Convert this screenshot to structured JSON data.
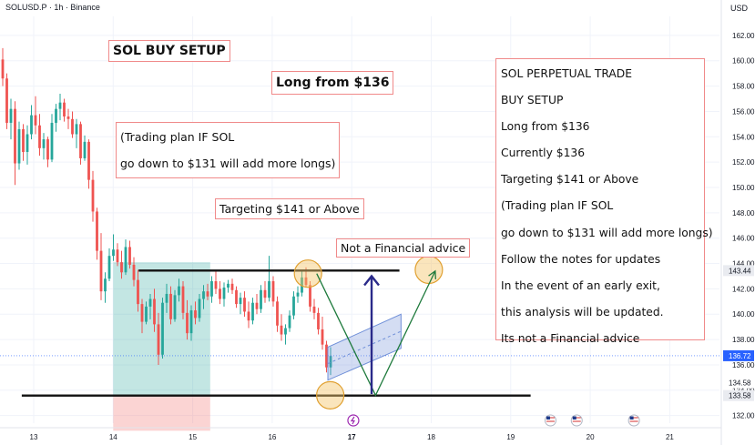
{
  "header": {
    "symbol": "SOLUSD.P · 1h · Binance",
    "currency": "USD"
  },
  "annotations": {
    "title": "SOL BUY SETUP",
    "entry": "Long from $136",
    "plan_line1": "(Trading plan IF SOL",
    "plan_line2": "go down to $131 will add more longs)",
    "target": "Targeting $141 or Above",
    "disclaimer": "Not a Financial advice"
  },
  "summary": {
    "lines": [
      "SOL PERPETUAL TRADE",
      "BUY SETUP",
      "Long from $136",
      "Currently $136",
      "Targeting $141 or Above",
      "(Trading plan IF SOL",
      "go down to $131 will add more longs)",
      "Follow the notes for updates",
      "In the event of an early exit,",
      "this analysis will be updated.",
      "Its not a Financial advice"
    ]
  },
  "colors": {
    "up": "#26a69a",
    "down": "#ef5350",
    "note_border": "#f08a8a",
    "arrow_navy": "#2a2a8a",
    "arrow_green": "#1e7a3c",
    "channel": "#6f8fd8",
    "circle_fill": "#f5c66a",
    "circle_stroke": "#e0a030",
    "price_tag": "#2962ff",
    "line_tag": "#131722",
    "event_icon": "#9c27b0"
  },
  "chart_data": {
    "type": "candlestick",
    "interval": "1h",
    "ylim": [
      131.4,
      163.5
    ],
    "y_ticks": [
      132,
      134,
      136,
      138,
      140,
      142,
      144,
      146,
      148,
      150,
      152,
      154,
      156,
      158,
      160,
      162
    ],
    "y_tick_labels": [
      "132.00",
      "134.00",
      "136.00",
      "138.00",
      "140.00",
      "142.00",
      "144.00",
      "146.00",
      "148.00",
      "150.00",
      "152.00",
      "154.00",
      "156.00",
      "158.00",
      "160.00",
      "162.00"
    ],
    "x_days": [
      13,
      14,
      15,
      16,
      17,
      18,
      19,
      20,
      21
    ],
    "x_tick_labels": [
      "13",
      "14",
      "15",
      "16",
      "17",
      "18",
      "19",
      "20",
      "21"
    ],
    "x_range": [
      12.55,
      21.55
    ],
    "price_labels": [
      {
        "value": 143.44,
        "text": "143.44",
        "kind": "line"
      },
      {
        "value": 136.72,
        "text": "136.72",
        "kind": "last"
      },
      {
        "value": 134.58,
        "text": "134.58",
        "kind": "minor"
      },
      {
        "value": 133.58,
        "text": "133.58",
        "kind": "line"
      }
    ],
    "levels": {
      "resistance": {
        "value": 143.44,
        "x_start": 14.32,
        "x_end": 17.6
      },
      "support": {
        "value": 133.58,
        "x_start": 12.85,
        "x_end": 19.25
      }
    },
    "long_position": {
      "x_start": 14.0,
      "x_end": 15.22,
      "entry": 133.58,
      "target": 144.1,
      "stop": 130.8
    },
    "path": [
      {
        "x": 16.56,
        "y": 143.2
      },
      {
        "x": 17.3,
        "y": 133.6
      },
      {
        "x": 18.05,
        "y": 143.4
      }
    ],
    "arrow_up": {
      "x": 17.25,
      "from": 133.7,
      "to": 143.0
    },
    "channel": {
      "x1": 16.7,
      "x2": 17.62,
      "bottom_start": 134.8,
      "bottom_end": 137.3,
      "top_start": 137.4,
      "top_end": 140.0
    },
    "circles": [
      {
        "x": 16.45,
        "y": 143.2
      },
      {
        "x": 16.73,
        "y": 133.6
      },
      {
        "x": 17.97,
        "y": 143.5
      }
    ],
    "events": [
      17.02
    ],
    "flags": [
      19.5,
      19.83,
      20.55
    ],
    "candles": [
      [
        160.1,
        161.0,
        158.0,
        158.6
      ],
      [
        158.6,
        159.0,
        154.6,
        155.1
      ],
      [
        155.1,
        157.0,
        153.8,
        156.2
      ],
      [
        156.2,
        156.8,
        150.2,
        151.9
      ],
      [
        151.9,
        155.2,
        151.4,
        154.6
      ],
      [
        154.6,
        155.0,
        152.1,
        152.8
      ],
      [
        152.8,
        154.9,
        151.8,
        154.2
      ],
      [
        154.2,
        156.5,
        153.8,
        155.7
      ],
      [
        155.7,
        157.2,
        154.2,
        154.9
      ],
      [
        154.9,
        155.8,
        152.5,
        153.1
      ],
      [
        153.1,
        154.3,
        152.2,
        153.8
      ],
      [
        153.8,
        154.0,
        151.6,
        152.2
      ],
      [
        152.2,
        155.8,
        152.0,
        155.1
      ],
      [
        155.1,
        156.6,
        154.4,
        156.2
      ],
      [
        156.2,
        157.4,
        155.3,
        156.7
      ],
      [
        156.7,
        157.0,
        155.2,
        155.6
      ],
      [
        155.6,
        156.2,
        154.6,
        155.4
      ],
      [
        155.4,
        156.0,
        153.9,
        154.2
      ],
      [
        154.2,
        155.4,
        153.1,
        155.0
      ],
      [
        155.0,
        155.2,
        151.8,
        152.3
      ],
      [
        152.3,
        154.1,
        152.1,
        153.6
      ],
      [
        153.6,
        153.8,
        149.9,
        150.6
      ],
      [
        150.6,
        151.3,
        147.3,
        148.1
      ],
      [
        148.1,
        148.4,
        144.3,
        145.0
      ],
      [
        145.0,
        146.4,
        141.1,
        141.8
      ],
      [
        141.8,
        143.3,
        140.9,
        142.8
      ],
      [
        142.8,
        145.2,
        142.6,
        144.6
      ],
      [
        144.6,
        146.3,
        144.2,
        145.1
      ],
      [
        145.1,
        145.6,
        143.8,
        144.1
      ],
      [
        144.1,
        145.0,
        142.8,
        143.3
      ],
      [
        143.3,
        145.9,
        143.1,
        145.3
      ],
      [
        145.3,
        145.8,
        143.6,
        143.9
      ],
      [
        143.9,
        144.5,
        142.2,
        142.7
      ],
      [
        142.7,
        143.5,
        140.2,
        140.8
      ],
      [
        140.8,
        141.2,
        138.5,
        139.4
      ],
      [
        139.4,
        141.0,
        139.2,
        140.6
      ],
      [
        140.6,
        141.6,
        139.6,
        141.2
      ],
      [
        141.2,
        142.0,
        138.6,
        139.2
      ],
      [
        139.2,
        140.1,
        136.0,
        136.8
      ],
      [
        136.8,
        141.3,
        136.5,
        140.9
      ],
      [
        140.9,
        142.4,
        140.1,
        141.6
      ],
      [
        141.6,
        142.2,
        139.2,
        139.6
      ],
      [
        139.6,
        141.9,
        139.4,
        141.5
      ],
      [
        141.5,
        142.8,
        141.0,
        142.2
      ],
      [
        142.2,
        142.6,
        139.6,
        140.1
      ],
      [
        140.1,
        141.1,
        138.0,
        138.5
      ],
      [
        138.5,
        140.7,
        137.9,
        140.3
      ],
      [
        140.3,
        141.0,
        139.2,
        139.7
      ],
      [
        139.7,
        141.6,
        139.4,
        141.2
      ],
      [
        141.2,
        142.3,
        140.4,
        141.8
      ],
      [
        141.8,
        142.4,
        141.1,
        141.4
      ],
      [
        141.4,
        143.0,
        140.9,
        142.6
      ],
      [
        142.6,
        143.5,
        141.6,
        142.0
      ],
      [
        142.0,
        142.6,
        140.8,
        141.2
      ],
      [
        141.2,
        142.5,
        140.6,
        142.1
      ],
      [
        142.1,
        142.7,
        141.7,
        142.4
      ],
      [
        142.4,
        142.8,
        141.6,
        141.9
      ],
      [
        141.9,
        142.2,
        140.5,
        140.8
      ],
      [
        140.8,
        141.7,
        140.0,
        141.3
      ],
      [
        141.3,
        141.8,
        139.8,
        140.2
      ],
      [
        140.2,
        141.0,
        138.9,
        139.5
      ],
      [
        139.5,
        141.3,
        139.2,
        140.9
      ],
      [
        140.9,
        141.6,
        140.0,
        140.4
      ],
      [
        140.4,
        142.3,
        140.1,
        141.9
      ],
      [
        141.9,
        142.6,
        140.9,
        141.3
      ],
      [
        141.3,
        144.6,
        141.0,
        142.6
      ],
      [
        142.6,
        143.0,
        140.6,
        141.0
      ],
      [
        141.0,
        141.4,
        138.6,
        139.1
      ],
      [
        139.1,
        140.0,
        137.9,
        138.4
      ],
      [
        138.4,
        139.2,
        137.6,
        138.9
      ],
      [
        138.9,
        140.3,
        138.6,
        139.9
      ],
      [
        139.9,
        141.8,
        139.6,
        141.4
      ],
      [
        141.4,
        142.2,
        140.9,
        141.7
      ],
      [
        141.7,
        143.5,
        141.4,
        142.9
      ],
      [
        142.9,
        143.7,
        142.1,
        142.3
      ],
      [
        142.3,
        142.6,
        140.2,
        140.6
      ],
      [
        140.6,
        141.2,
        139.6,
        140.1
      ],
      [
        140.1,
        140.5,
        138.4,
        138.8
      ],
      [
        138.8,
        139.8,
        137.2,
        137.6
      ],
      [
        137.6,
        137.9,
        135.4,
        135.8
      ],
      [
        135.8,
        137.4,
        135.2,
        136.7
      ]
    ]
  }
}
